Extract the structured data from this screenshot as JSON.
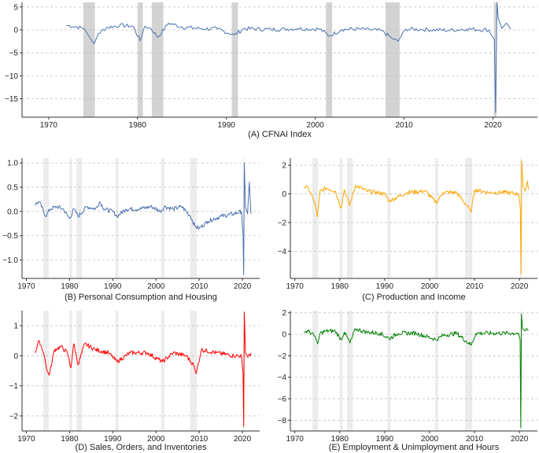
{
  "colors": {
    "panel_a": "#4c72b0",
    "panel_b": "#4c72b0",
    "panel_c": "#ffa500",
    "panel_d": "#ff0000",
    "panel_e": "#008000",
    "recession_a": "#d3d3d3",
    "recession_small": "#ececec",
    "grid": "#bbbbbb"
  },
  "chart_data": [
    {
      "type": "line",
      "panel": "A",
      "title": "(A) CFNAI Index",
      "xlim": [
        1967,
        2025
      ],
      "ylim": [
        -19,
        6
      ],
      "xticks": [
        1970,
        1980,
        1990,
        2000,
        2010,
        2020
      ],
      "xtick_labels": [
        "1970",
        "1980",
        "1990",
        "2000",
        "2010",
        "2020"
      ],
      "yticks": [
        5,
        0,
        -5,
        -10,
        -15
      ],
      "ytick_labels": [
        "5",
        "0",
        "−5",
        "−10",
        "−15"
      ],
      "grid": "horizontal-dashed",
      "recessions": [
        [
          1973.9,
          1975.2
        ],
        [
          1980.0,
          1980.6
        ],
        [
          1981.6,
          1982.9
        ],
        [
          1990.6,
          1991.3
        ],
        [
          2001.2,
          2001.9
        ],
        [
          2007.9,
          2009.5
        ],
        [
          2020.1,
          2020.4
        ]
      ],
      "series": [
        {
          "x": [
            1972,
            1973,
            1974,
            1974.5,
            1975.1,
            1975.6,
            1976.5,
            1978,
            1979.5,
            1980.3,
            1980.8,
            1981.5,
            1982.3,
            1983.5,
            1985,
            1987,
            1989,
            1990.9,
            1992,
            1995,
            1998,
            2000.5,
            2001.6,
            2003,
            2005,
            2007.5,
            2008.6,
            2009.3,
            2010.2,
            2012,
            2015,
            2017,
            2019.5,
            2020.15,
            2020.3,
            2020.45,
            2020.6,
            2021,
            2021.5,
            2022
          ],
          "values": [
            1,
            0.7,
            0.3,
            -1.3,
            -3,
            -0.8,
            0.5,
            1,
            0.8,
            -2.4,
            0.8,
            0.3,
            -1.6,
            1.5,
            0.6,
            0.3,
            0.2,
            -1.1,
            0.3,
            0.1,
            0.3,
            0.2,
            -1.3,
            0.1,
            0.2,
            -0.2,
            -1.8,
            -2.5,
            0.2,
            0.1,
            -0.1,
            0.2,
            0,
            -2,
            -18,
            6,
            2.5,
            0.3,
            1.5,
            0.2
          ]
        }
      ]
    },
    {
      "type": "line",
      "panel": "B",
      "title": "(B) Personal Consumption and Housing",
      "xlim": [
        1969,
        2024
      ],
      "ylim": [
        -1.38,
        1.1
      ],
      "xticks": [
        1970,
        1980,
        1990,
        2000,
        2010,
        2020
      ],
      "xtick_labels": [
        "1970",
        "1980",
        "1990",
        "2000",
        "2010",
        "2020"
      ],
      "yticks": [
        1.0,
        0.5,
        0.0,
        -0.5,
        -1.0
      ],
      "ytick_labels": [
        "1.0",
        "0.5",
        "0.0",
        "−0.5",
        "−1.0"
      ],
      "grid": "horizontal-dashed",
      "recessions": [
        [
          1973.9,
          1975.2
        ],
        [
          1980.0,
          1980.6
        ],
        [
          1981.6,
          1982.9
        ],
        [
          1990.6,
          1991.3
        ],
        [
          2001.2,
          2001.9
        ],
        [
          2007.9,
          2009.5
        ],
        [
          2020.1,
          2020.4
        ]
      ],
      "series": [
        {
          "x": [
            1972,
            1973,
            1974.5,
            1975.5,
            1977,
            1978.5,
            1980,
            1981,
            1982,
            1984,
            1986,
            1987,
            1988,
            1990,
            1991,
            1993,
            1996,
            1999,
            2001,
            2002,
            2004,
            2006,
            2008,
            2009,
            2010,
            2012,
            2015,
            2018,
            2019.8,
            2020.15,
            2020.3,
            2020.45,
            2020.7,
            2021.2,
            2021.6,
            2022
          ],
          "values": [
            0.15,
            0.2,
            -0.1,
            0.05,
            0.1,
            0.05,
            -0.15,
            0.05,
            -0.1,
            0.1,
            0.05,
            0.2,
            0.05,
            0.0,
            -0.1,
            0.05,
            0.05,
            0.1,
            0.0,
            0.1,
            0.05,
            0.1,
            -0.1,
            -0.3,
            -0.35,
            -0.2,
            -0.1,
            -0.05,
            0.0,
            -0.5,
            -1.3,
            1.0,
            0.1,
            -0.05,
            0.6,
            -0.05
          ]
        }
      ]
    },
    {
      "type": "line",
      "panel": "C",
      "title": "(C) Production and Income",
      "xlim": [
        1969,
        2024
      ],
      "ylim": [
        -5.9,
        2.5
      ],
      "xticks": [
        1970,
        1980,
        1990,
        2000,
        2010,
        2020
      ],
      "xtick_labels": [
        "1970",
        "1980",
        "1990",
        "2000",
        "2010",
        "2020"
      ],
      "yticks": [
        2,
        0,
        -2,
        -4
      ],
      "ytick_labels": [
        "2",
        "0",
        "−2",
        "−4"
      ],
      "grid": "horizontal-dashed",
      "recessions": [
        [
          1973.9,
          1975.2
        ],
        [
          1980.0,
          1980.6
        ],
        [
          1981.6,
          1982.9
        ],
        [
          1990.6,
          1991.3
        ],
        [
          2001.2,
          2001.9
        ],
        [
          2007.9,
          2009.5
        ],
        [
          2020.1,
          2020.4
        ]
      ],
      "series": [
        {
          "x": [
            1972,
            1973,
            1974.3,
            1975.0,
            1975.6,
            1977,
            1979,
            1980.3,
            1981,
            1982.2,
            1983.5,
            1986,
            1990,
            1991,
            1995,
            1999,
            2001.5,
            2003,
            2006,
            2008.5,
            2009.2,
            2010,
            2013,
            2017,
            2019.8,
            2020.2,
            2020.35,
            2020.5,
            2020.8,
            2021.3,
            2021.8,
            2022
          ],
          "values": [
            0.5,
            0.4,
            -0.5,
            -1.6,
            0.2,
            0.4,
            0.2,
            -1.0,
            0.3,
            -0.8,
            0.6,
            0.2,
            0.0,
            -0.5,
            0.1,
            0.2,
            -0.6,
            0.1,
            0.1,
            -0.9,
            -1.3,
            0.3,
            0.1,
            0.1,
            0.0,
            -1.0,
            -5.6,
            2.3,
            0.5,
            0.2,
            0.9,
            0.3
          ]
        }
      ]
    },
    {
      "type": "line",
      "panel": "D",
      "title": "(D) Sales, Orders, and Inventories",
      "xlim": [
        1969,
        2024
      ],
      "ylim": [
        -2.5,
        1.5
      ],
      "xticks": [
        1970,
        1980,
        1990,
        2000,
        2010,
        2020
      ],
      "xtick_labels": [
        "1970",
        "1980",
        "1990",
        "2000",
        "2010",
        "2020"
      ],
      "yticks": [
        1,
        0,
        -1,
        -2
      ],
      "ytick_labels": [
        "1",
        "0",
        "−1",
        "−2"
      ],
      "grid": "horizontal-dashed",
      "recessions": [
        [
          1973.9,
          1975.2
        ],
        [
          1980.0,
          1980.6
        ],
        [
          1981.6,
          1982.9
        ],
        [
          1990.6,
          1991.3
        ],
        [
          2001.2,
          2001.9
        ],
        [
          2007.9,
          2009.5
        ],
        [
          2020.1,
          2020.4
        ]
      ],
      "series": [
        {
          "x": [
            1972,
            1973,
            1974,
            1974.8,
            1975.3,
            1976.5,
            1978,
            1979.5,
            1980.3,
            1981,
            1982,
            1983.5,
            1986,
            1989,
            1991,
            1994,
            1998,
            2001.5,
            2004,
            2007,
            2008.7,
            2009.3,
            2010.5,
            2014,
            2018,
            2019.8,
            2020.15,
            2020.3,
            2020.45,
            2020.7,
            2021.3,
            2022
          ],
          "values": [
            0.1,
            0.5,
            0.1,
            -0.5,
            -0.65,
            0.2,
            0.3,
            0.1,
            -0.4,
            0.4,
            -0.3,
            0.4,
            0.2,
            0.1,
            -0.2,
            0.1,
            0.1,
            -0.2,
            0.1,
            0.0,
            -0.3,
            -0.6,
            0.2,
            0.1,
            0.0,
            0.0,
            -0.6,
            -2.35,
            1.45,
            0.1,
            -0.05,
            0.1
          ]
        }
      ]
    },
    {
      "type": "line",
      "panel": "E",
      "title": "(E) Employment & Unimployment and Hours",
      "xlim": [
        1969,
        2024
      ],
      "ylim": [
        -9,
        2.2
      ],
      "xticks": [
        1970,
        1980,
        1990,
        2000,
        2010,
        2020
      ],
      "xtick_labels": [
        "1970",
        "1980",
        "1990",
        "2000",
        "2010",
        "2020"
      ],
      "yticks": [
        2,
        0,
        -2,
        -4,
        -6,
        -8
      ],
      "ytick_labels": [
        "2",
        "0",
        "−2",
        "−4",
        "−6",
        "−8"
      ],
      "grid": "horizontal-dashed",
      "recessions": [
        [
          1973.9,
          1975.2
        ],
        [
          1980.0,
          1980.6
        ],
        [
          1981.6,
          1982.9
        ],
        [
          1990.6,
          1991.3
        ],
        [
          2001.2,
          2001.9
        ],
        [
          2007.9,
          2009.5
        ],
        [
          2020.1,
          2020.4
        ]
      ],
      "series": [
        {
          "x": [
            1972,
            1973,
            1974.5,
            1975.1,
            1975.6,
            1977,
            1979,
            1980.3,
            1981,
            1982.3,
            1983.5,
            1986,
            1989,
            1991,
            1993,
            1997,
            2001.5,
            2003,
            2006,
            2008.6,
            2009.3,
            2010.3,
            2013,
            2017,
            2019.8,
            2020.15,
            2020.3,
            2020.45,
            2020.7,
            2021.3,
            2022
          ],
          "values": [
            0.2,
            0.3,
            -0.2,
            -0.9,
            0.1,
            0.3,
            0.3,
            -0.5,
            0.2,
            -0.8,
            0.5,
            0.2,
            0.1,
            -0.4,
            0.1,
            0.1,
            -0.5,
            -0.1,
            0.1,
            -0.8,
            -1.0,
            0.1,
            0.1,
            0.1,
            0.1,
            -0.5,
            -8.7,
            1.9,
            0.5,
            0.3,
            0.4
          ]
        }
      ]
    }
  ]
}
